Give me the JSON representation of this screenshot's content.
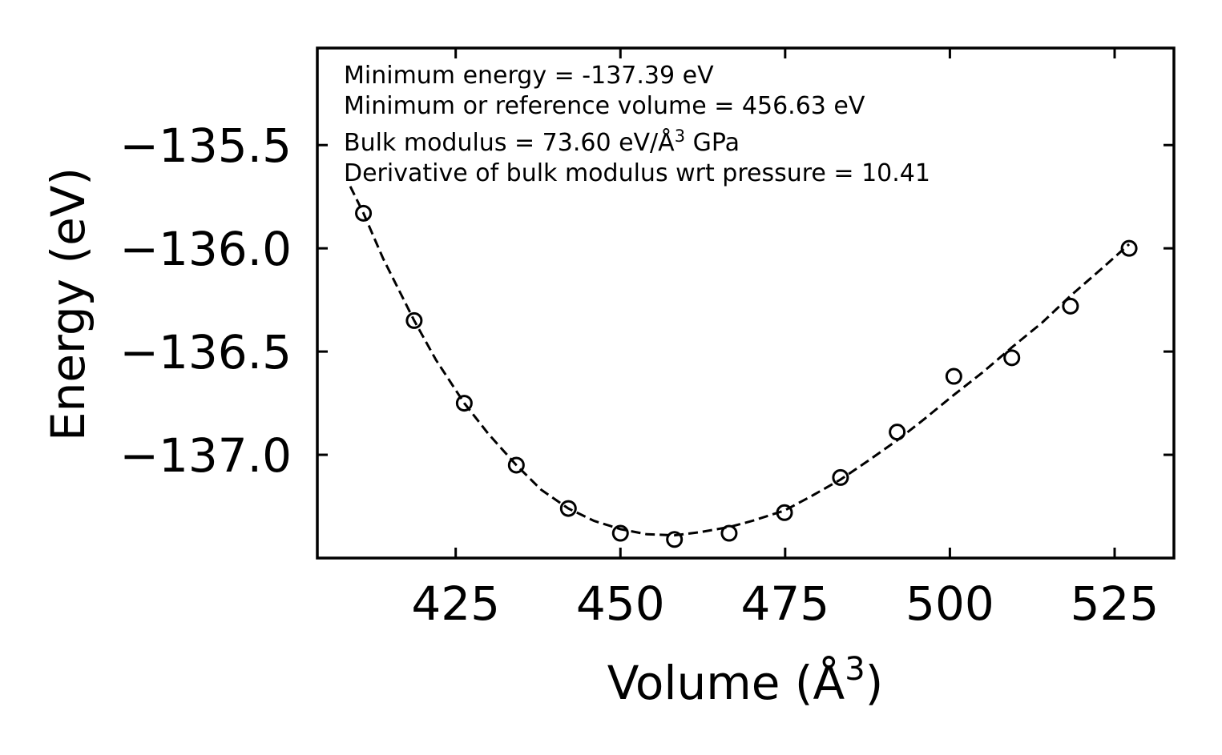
{
  "chart_data": {
    "type": "scatter",
    "title": "",
    "xlabel": "Volume (Å",
    "xlabel_sup": "3",
    "xlabel_end": ")",
    "ylabel": "Energy (eV)",
    "xlim": [
      404.0,
      534.0
    ],
    "ylim": [
      -137.5,
      -135.03
    ],
    "xticks": [
      425,
      450,
      475,
      500,
      525
    ],
    "xtick_labels": [
      "425",
      "450",
      "475",
      "500",
      "525"
    ],
    "yticks": [
      -137.0,
      -136.5,
      -136.0,
      -135.5
    ],
    "ytick_labels": [
      "−137.0",
      "−136.5",
      "−136.0",
      "−135.5"
    ],
    "series": [
      {
        "name": "data",
        "style": "open-circle",
        "x": [
          411.0,
          418.7,
          426.3,
          434.2,
          442.1,
          450.0,
          458.2,
          466.5,
          474.9,
          483.4,
          492.0,
          500.6,
          509.4,
          518.3,
          527.2
        ],
        "y": [
          -135.83,
          -136.35,
          -136.75,
          -137.05,
          -137.26,
          -137.38,
          -137.41,
          -137.38,
          -137.28,
          -137.11,
          -136.89,
          -136.62,
          -136.53,
          -136.28,
          -136.0
        ]
      },
      {
        "name": "fit",
        "style": "dashed-line",
        "x": [
          409.0,
          411.0,
          414.0,
          418.7,
          422.0,
          426.3,
          430.0,
          434.2,
          438.0,
          442.1,
          446.0,
          450.0,
          454.0,
          458.2,
          462.0,
          466.5,
          470.0,
          474.9,
          479.0,
          483.4,
          488.0,
          492.0,
          496.0,
          500.6,
          505.0,
          509.4,
          514.0,
          518.3,
          523.0,
          527.2
        ],
        "y": [
          -135.7,
          -135.83,
          -136.05,
          -136.35,
          -136.54,
          -136.75,
          -136.9,
          -137.05,
          -137.17,
          -137.26,
          -137.32,
          -137.36,
          -137.385,
          -137.39,
          -137.375,
          -137.35,
          -137.32,
          -137.27,
          -137.2,
          -137.12,
          -137.02,
          -136.93,
          -136.83,
          -136.71,
          -136.6,
          -136.48,
          -136.36,
          -136.23,
          -136.1,
          -135.98
        ]
      }
    ],
    "annotations": [
      {
        "text": "Minimum energy = -137.39 eV"
      },
      {
        "text": "Minimum or reference volume = 456.63 eV"
      },
      {
        "text": "Bulk modulus = 73.60 eV/Å",
        "sup": "3",
        "text_end": " GPa"
      },
      {
        "text": "Derivative of bulk modulus wrt pressure = 10.41"
      }
    ],
    "grid": false,
    "legend": "none"
  }
}
